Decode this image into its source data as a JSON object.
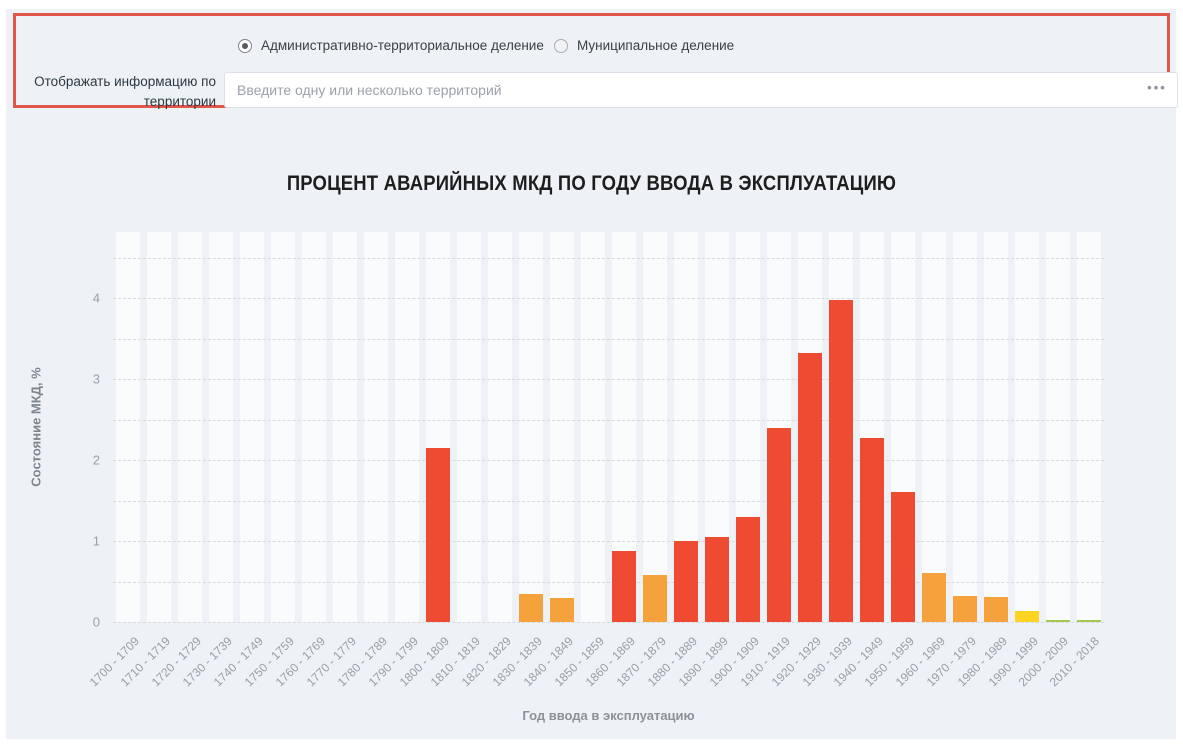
{
  "page": {
    "background": "#eef1f5"
  },
  "filter_panel": {
    "border_color": "#e0564b",
    "label": "Отображать информацию по территории",
    "radios": [
      {
        "label": "Административно-территориальное деление",
        "selected": true
      },
      {
        "label": "Муниципальное деление",
        "selected": false
      }
    ],
    "input": {
      "value": "",
      "placeholder": "Введите одну или несколько территорий"
    },
    "more_button_label": "•••"
  },
  "chart_data": {
    "type": "bar",
    "title": "ПРОЦЕНТ АВАРИЙНЫХ МКД ПО ГОДУ ВВОДА В ЭКСПЛУАТАЦИЮ",
    "xlabel": "Год ввода в эксплуатацию",
    "ylabel": "Состояние МКД, %",
    "ylim": [
      0,
      4.5
    ],
    "yticks": [
      0,
      1,
      2,
      3,
      4
    ],
    "grid": "horizontal dashed every 0.5, alternating light column bands",
    "legend": "none",
    "categories": [
      "1700 - 1709",
      "1710 - 1719",
      "1720 - 1729",
      "1730 - 1739",
      "1740 - 1749",
      "1750 - 1759",
      "1760 - 1769",
      "1770 - 1779",
      "1780 - 1789",
      "1790 - 1799",
      "1800 - 1809",
      "1810 - 1819",
      "1820 - 1829",
      "1830 - 1839",
      "1840 - 1849",
      "1850 - 1859",
      "1860 - 1869",
      "1870 - 1879",
      "1880 - 1889",
      "1890 - 1899",
      "1900 - 1909",
      "1910 - 1919",
      "1920 - 1929",
      "1930 - 1939",
      "1940 - 1949",
      "1950 - 1959",
      "1960 - 1969",
      "1970 - 1979",
      "1980 - 1989",
      "1990 - 1999",
      "2000 - 2009",
      "2010 - 2018"
    ],
    "values": [
      0,
      0,
      0,
      0,
      0,
      0,
      0,
      0,
      0,
      0,
      2.15,
      0,
      0,
      0.35,
      0.3,
      0,
      0.88,
      0.58,
      1.0,
      1.05,
      1.3,
      2.4,
      3.32,
      3.97,
      2.27,
      1.6,
      0.6,
      0.32,
      0.31,
      0.13,
      0.03,
      0.03
    ],
    "levels": [
      null,
      null,
      null,
      null,
      null,
      null,
      null,
      null,
      null,
      null,
      "red",
      null,
      null,
      "orange",
      "orange",
      null,
      "red",
      "orange",
      "red",
      "red",
      "red",
      "red",
      "red",
      "red",
      "red",
      "red",
      "orange",
      "orange",
      "orange",
      "yellow",
      "green",
      "green"
    ],
    "palette": {
      "red": "#ee4b32",
      "orange": "#f5a13c",
      "yellow": "#fdd422",
      "green": "#a5c94e"
    }
  }
}
